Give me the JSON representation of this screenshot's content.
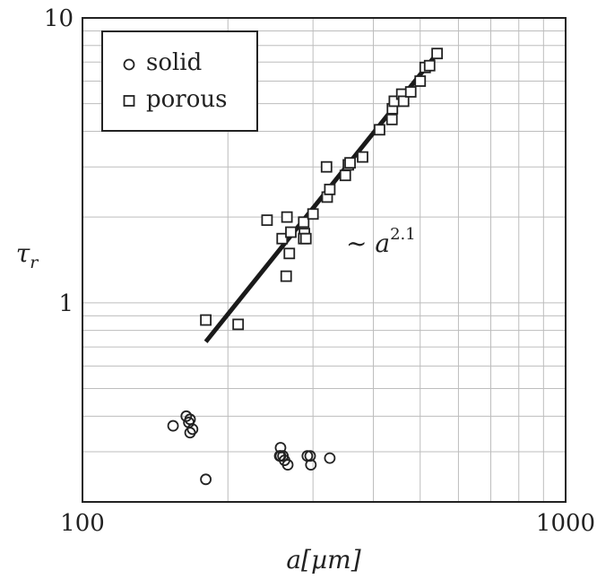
{
  "chart_data": {
    "type": "scatter",
    "title": "",
    "xlabel": "a[µm]",
    "ylabel": "τ_r",
    "x_scale": "log",
    "y_scale": "log",
    "xlim": [
      100,
      1000
    ],
    "ylim": [
      0.2,
      10
    ],
    "x_ticks": [
      "100",
      "1000"
    ],
    "y_ticks": [
      "1",
      "10"
    ],
    "grid": true,
    "legend_position": "top-left",
    "series": [
      {
        "name": "solid",
        "marker": "circle",
        "points": [
          [
            154,
            0.37
          ],
          [
            164,
            0.4
          ],
          [
            166,
            0.38
          ],
          [
            167,
            0.39
          ],
          [
            167,
            0.35
          ],
          [
            169,
            0.36
          ],
          [
            180,
            0.24
          ],
          [
            256,
            0.29
          ],
          [
            257,
            0.31
          ],
          [
            257,
            0.29
          ],
          [
            260,
            0.29
          ],
          [
            262,
            0.28
          ],
          [
            266,
            0.27
          ],
          [
            292,
            0.29
          ],
          [
            296,
            0.29
          ],
          [
            297,
            0.27
          ],
          [
            325,
            0.285
          ]
        ]
      },
      {
        "name": "porous",
        "marker": "square",
        "points": [
          [
            180,
            0.87
          ],
          [
            210,
            0.84
          ],
          [
            241,
            1.95
          ],
          [
            259,
            1.68
          ],
          [
            265,
            2.0
          ],
          [
            264,
            1.24
          ],
          [
            268,
            1.49
          ],
          [
            270,
            1.77
          ],
          [
            287,
            1.92
          ],
          [
            288,
            1.75
          ],
          [
            287,
            1.68
          ],
          [
            290,
            1.68
          ],
          [
            300,
            2.05
          ],
          [
            320,
            3.0
          ],
          [
            321,
            2.35
          ],
          [
            325,
            2.5
          ],
          [
            350,
            2.8
          ],
          [
            355,
            3.05
          ],
          [
            358,
            3.1
          ],
          [
            380,
            3.25
          ],
          [
            412,
            4.05
          ],
          [
            437,
            4.4
          ],
          [
            438,
            4.8
          ],
          [
            442,
            5.1
          ],
          [
            458,
            5.4
          ],
          [
            462,
            5.1
          ],
          [
            478,
            5.5
          ],
          [
            500,
            6.0
          ],
          [
            512,
            6.7
          ],
          [
            523,
            6.8
          ],
          [
            542,
            7.5
          ]
        ]
      }
    ],
    "fit_line": {
      "label_base": "~ a",
      "label_exp": "2.1",
      "exponent": 2.1,
      "from": [
        180,
        0.73
      ],
      "to": [
        542,
        7.5
      ]
    }
  }
}
